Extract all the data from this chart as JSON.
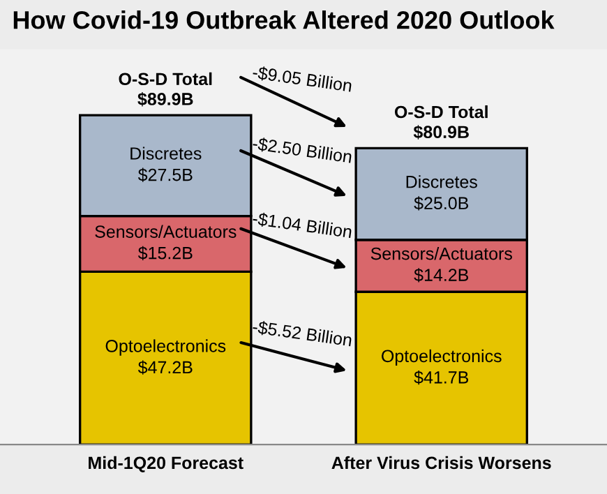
{
  "chart_data": {
    "type": "bar",
    "title": "How Covid-19 Outbreak Altered 2020 Outlook",
    "categories": [
      "Mid-1Q20 Forecast",
      "After Virus Crisis Worsens"
    ],
    "stacked": true,
    "series": [
      {
        "name": "Optoelectronics",
        "color": "#e6c400",
        "values": [
          47.2,
          41.7
        ],
        "value_labels": [
          "$47.2B",
          "$41.7B"
        ]
      },
      {
        "name": "Sensors/Actuators",
        "color": "#d9676b",
        "values": [
          15.2,
          14.2
        ],
        "value_labels": [
          "$15.2B",
          "$14.2B"
        ]
      },
      {
        "name": "Discretes",
        "color": "#a9b8cb",
        "values": [
          27.5,
          25.0
        ],
        "value_labels": [
          "$27.5B",
          "$25.0B"
        ]
      }
    ],
    "totals": [
      "O-S-D Total\n$89.9B",
      "O-S-D Total\n$80.9B"
    ],
    "annotations": [
      "-$9.05 Billion",
      "-$2.50 Billion",
      "-$1.04 Billion",
      "-$5.52 Billion"
    ],
    "grid": false,
    "legend": false
  }
}
